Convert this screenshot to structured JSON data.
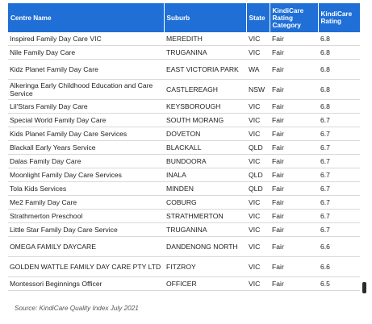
{
  "table": {
    "headers": {
      "centre": "Centre Name",
      "suburb": "Suburb",
      "state": "State",
      "category": "KindiCare Rating Category",
      "rating": "KindiCare Rating"
    },
    "rows": [
      {
        "centre": "Inspired Family Day Care VIC",
        "suburb": "MEREDITH",
        "state": "VIC",
        "category": "Fair",
        "rating": "6.8"
      },
      {
        "centre": "Nile Family Day Care",
        "suburb": "TRUGANINA",
        "state": "VIC",
        "category": "Fair",
        "rating": "6.8"
      },
      {
        "centre": "Kidz Planet Family Day Care",
        "suburb": "EAST VICTORIA PARK",
        "state": "WA",
        "category": "Fair",
        "rating": "6.8"
      },
      {
        "centre": "Alkeringa Early Childhood Education and Care Service",
        "suburb": "CASTLEREAGH",
        "state": "NSW",
        "category": "Fair",
        "rating": "6.8"
      },
      {
        "centre": "Lil'Stars Family Day Care",
        "suburb": "KEYSBOROUGH",
        "state": "VIC",
        "category": "Fair",
        "rating": "6.8"
      },
      {
        "centre": "Special World Family Day Care",
        "suburb": "SOUTH MORANG",
        "state": "VIC",
        "category": "Fair",
        "rating": "6.7"
      },
      {
        "centre": "Kids Planet Family Day Care Services",
        "suburb": "DOVETON",
        "state": "VIC",
        "category": "Fair",
        "rating": "6.7"
      },
      {
        "centre": "Blackall Early Years Service",
        "suburb": "BLACKALL",
        "state": "QLD",
        "category": "Fair",
        "rating": "6.7"
      },
      {
        "centre": "Dalas Family Day Care",
        "suburb": "BUNDOORA",
        "state": "VIC",
        "category": "Fair",
        "rating": "6.7"
      },
      {
        "centre": "Moonlight Family Day Care Services",
        "suburb": "INALA",
        "state": "QLD",
        "category": "Fair",
        "rating": "6.7"
      },
      {
        "centre": "Tola Kids Services",
        "suburb": "MINDEN",
        "state": "QLD",
        "category": "Fair",
        "rating": "6.7"
      },
      {
        "centre": "Me2 Family Day Care",
        "suburb": "COBURG",
        "state": "VIC",
        "category": "Fair",
        "rating": "6.7"
      },
      {
        "centre": "Strathmerton Preschool",
        "suburb": "STRATHMERTON",
        "state": "VIC",
        "category": "Fair",
        "rating": "6.7"
      },
      {
        "centre": "Little Star Family Day Care Service",
        "suburb": "TRUGANINA",
        "state": "VIC",
        "category": "Fair",
        "rating": "6.7"
      },
      {
        "centre": "OMEGA FAMILY DAYCARE",
        "suburb": "DANDENONG NORTH",
        "state": "VIC",
        "category": "Fair",
        "rating": "6.6"
      },
      {
        "centre": "GOLDEN WATTLE FAMILY DAY CARE PTY LTD",
        "suburb": "FITZROY",
        "state": "VIC",
        "category": "Fair",
        "rating": "6.6"
      },
      {
        "centre": "Montessori Beginnings Officer",
        "suburb": "OFFICER",
        "state": "VIC",
        "category": "Fair",
        "rating": "6.5"
      }
    ]
  },
  "source": "Source: KindiCare Quality Index July 2021",
  "colors": {
    "header_bg": "#1f6fd6",
    "header_text": "#ffffff"
  }
}
